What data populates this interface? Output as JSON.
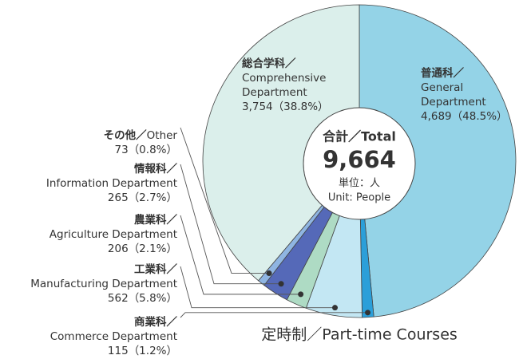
{
  "chart_data": {
    "type": "pie",
    "total": 9664,
    "total_label": "9,664",
    "center_lines": [
      "合計／Total",
      "単位：人",
      "Unit: People"
    ],
    "footnote": "定時制／Part-time Courses",
    "slices": [
      {
        "jp": "普通科／",
        "en_lines": [
          "General",
          "Department"
        ],
        "value": 4689,
        "value_label": "4,689",
        "percent": 48.5,
        "percent_label": "（48.5%）",
        "color": "#94d3e7"
      },
      {
        "jp": "商業科／",
        "en_lines": [
          "Commerce Department"
        ],
        "value": 115,
        "value_label": "115",
        "percent": 1.2,
        "percent_label": "（1.2%）",
        "color": "#2b9fd9"
      },
      {
        "jp": "工業科／",
        "en_lines": [
          "Manufacturing Department"
        ],
        "value": 562,
        "value_label": "562",
        "percent": 5.8,
        "percent_label": "（5.8%）",
        "color": "#c3e7f3"
      },
      {
        "jp": "農業科／",
        "en_lines": [
          "Agriculture Department"
        ],
        "value": 206,
        "value_label": "206",
        "percent": 2.1,
        "percent_label": "（2.1%）",
        "color": "#aedbc4"
      },
      {
        "jp": "情報科／",
        "en_lines": [
          "Information Department"
        ],
        "value": 265,
        "value_label": "265",
        "percent": 2.7,
        "percent_label": "（2.7%）",
        "color": "#5569b8"
      },
      {
        "jp": "その他／",
        "en_lines": [
          "Other"
        ],
        "value": 73,
        "value_label": "73",
        "percent": 0.8,
        "percent_label": "（0.8%）",
        "color": "#8fb5e2"
      },
      {
        "jp": "総合学科／",
        "en_lines": [
          "Comprehensive",
          "Department"
        ],
        "value": 3754,
        "value_label": "3,754",
        "percent": 38.8,
        "percent_label": "（38.8%）",
        "color": "#dbefeb"
      }
    ]
  }
}
